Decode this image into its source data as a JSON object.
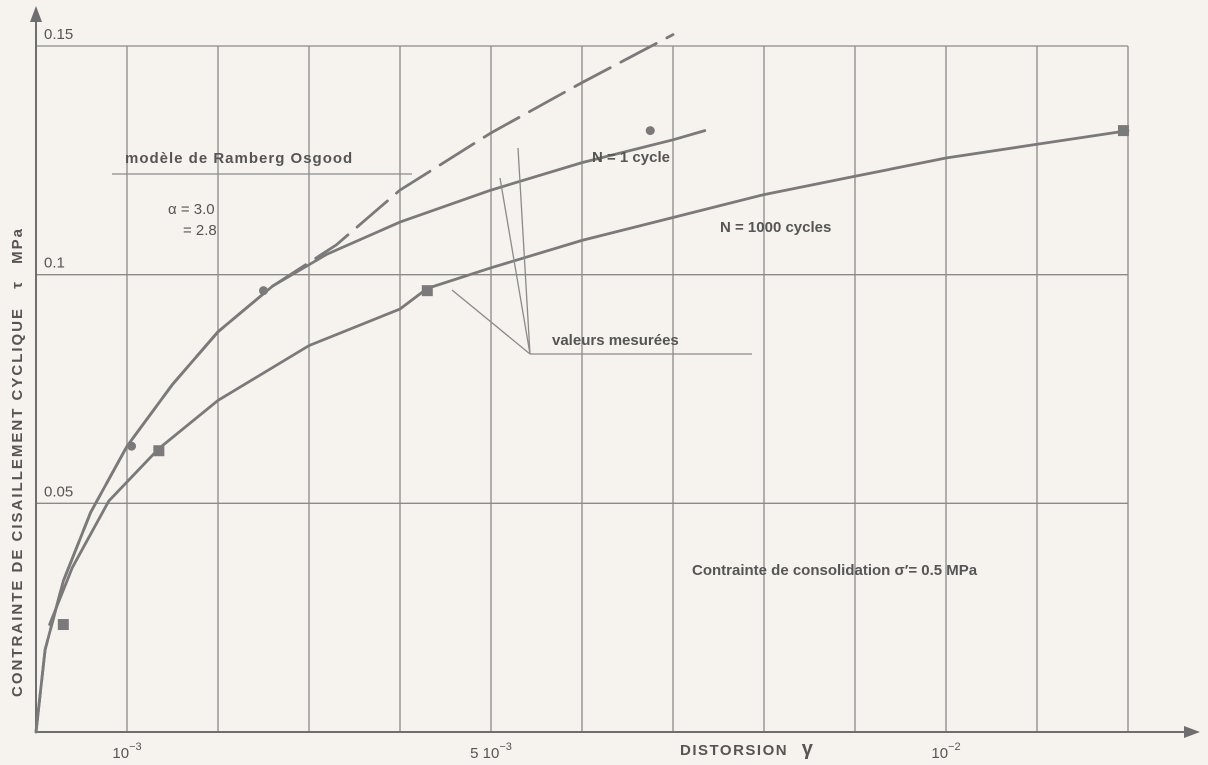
{
  "chart_data": {
    "type": "line",
    "xlabel": "DISTORSION",
    "xlabel_symbol": "γ",
    "ylabel": "CONTRAINTE DE CISAILLEMENT CYCLIQUE",
    "ylabel_symbol": "τ",
    "ylabel_unit": "MPa",
    "x_unit_scale": 0.001,
    "xlim": [
      0,
      12
    ],
    "ylim": [
      0,
      0.15
    ],
    "grid": true,
    "x_ticks": [
      {
        "x": 1,
        "label": "10",
        "exp": "−3"
      },
      {
        "x": 5,
        "label": "5 10",
        "exp": "−3"
      },
      {
        "x": 10,
        "label": "10",
        "exp": "−2"
      }
    ],
    "y_ticks": [
      {
        "y": 0.05,
        "label": "0.05"
      },
      {
        "y": 0.1,
        "label": "0.1"
      },
      {
        "y": 0.15,
        "label": "0.15"
      }
    ],
    "series": [
      {
        "name": "N = 1 cycle",
        "style": "solid",
        "points": [
          [
            0,
            0
          ],
          [
            0.1,
            0.018
          ],
          [
            0.3,
            0.033
          ],
          [
            0.6,
            0.048
          ],
          [
            1.0,
            0.0625
          ],
          [
            1.5,
            0.076
          ],
          [
            2.0,
            0.0875
          ],
          [
            2.6,
            0.0975
          ],
          [
            3.2,
            0.1045
          ],
          [
            4.0,
            0.1115
          ],
          [
            5.0,
            0.1185
          ],
          [
            6.0,
            0.1245
          ],
          [
            7.0,
            0.1295
          ],
          [
            7.35,
            0.1315
          ]
        ],
        "markers": {
          "shape": "circle",
          "points": [
            [
              1.05,
              0.0625
            ],
            [
              2.5,
              0.0965
            ],
            [
              6.75,
              0.1315
            ]
          ]
        }
      },
      {
        "name": "N = 1000 cycles",
        "style": "solid",
        "points": [
          [
            0.15,
            0.0235
          ],
          [
            0.4,
            0.036
          ],
          [
            0.8,
            0.0505
          ],
          [
            1.35,
            0.062
          ],
          [
            2.0,
            0.0725
          ],
          [
            3.0,
            0.0845
          ],
          [
            4.0,
            0.0925
          ],
          [
            4.3,
            0.097
          ],
          [
            5.0,
            0.1015
          ],
          [
            6.0,
            0.1075
          ],
          [
            7.0,
            0.1125
          ],
          [
            8.0,
            0.1175
          ],
          [
            9.0,
            0.1215
          ],
          [
            10.0,
            0.1255
          ],
          [
            11.0,
            0.1285
          ],
          [
            12.0,
            0.1315
          ]
        ],
        "markers": {
          "shape": "square",
          "points": [
            [
              0.3,
              0.0235
            ],
            [
              1.35,
              0.0615
            ],
            [
              4.3,
              0.0965
            ],
            [
              11.95,
              0.1315
            ]
          ]
        }
      },
      {
        "name": "modèle de Ramberg Osgood",
        "style": "dashed",
        "points": [
          [
            0,
            0
          ],
          [
            0.1,
            0.018
          ],
          [
            0.3,
            0.033
          ],
          [
            0.6,
            0.048
          ],
          [
            1.0,
            0.0625
          ],
          [
            1.5,
            0.076
          ],
          [
            2.0,
            0.0875
          ],
          [
            2.6,
            0.0975
          ],
          [
            3.3,
            0.1065
          ],
          [
            4.0,
            0.1185
          ],
          [
            5.0,
            0.131
          ],
          [
            6.0,
            0.142
          ],
          [
            7.0,
            0.1525
          ]
        ]
      }
    ],
    "annotations": {
      "ramberg_title": "modèle de Ramberg Osgood",
      "alpha_line1": "α = 3.0",
      "alpha_line2": "= 2.8",
      "n1_label": "N = 1 cycle",
      "n1000_label": "N = 1000 cycles",
      "measured_label": "valeurs mesurées",
      "consolidation_label": "Contrainte de consolidation σ′= 0.5 MPa"
    },
    "colors": {
      "curve": "#7a7a7a",
      "grid": "#8a8a8a",
      "text": "#555555",
      "background": "#f6f3ee"
    }
  }
}
